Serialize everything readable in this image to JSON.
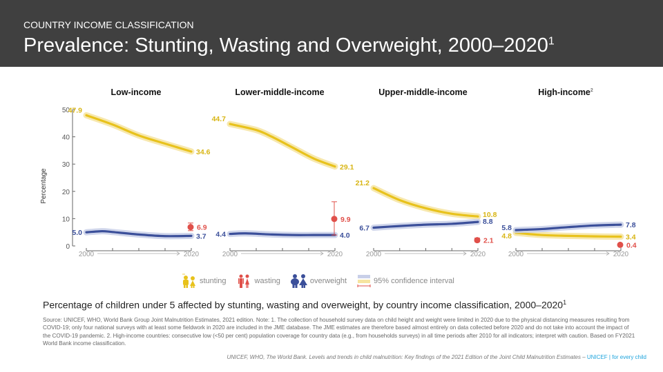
{
  "header": {
    "kicker": "COUNTRY INCOME CLASSIFICATION",
    "title": "Prevalence: Stunting, Wasting and Overweight, 2000–2020",
    "title_sup": "1"
  },
  "colors": {
    "header_bg": "#404040",
    "stunting": "#e8c21c",
    "stunting_band": "#f6e4a0",
    "wasting": "#e0504a",
    "overweight": "#3b4f9a",
    "overweight_band": "#c8cfe8",
    "axis": "#666666",
    "brand": "#1ca3dc"
  },
  "chart_data": {
    "type": "line",
    "ylabel": "Percentage",
    "ylim": [
      0,
      50
    ],
    "yticks": [
      0,
      10,
      20,
      30,
      40,
      50
    ],
    "x_start_label": "2000",
    "x_end_label": "2020",
    "panels": [
      {
        "name": "Low-income",
        "sup": "",
        "stunting": {
          "x": [
            2000,
            2005,
            2010,
            2015,
            2020
          ],
          "y": [
            47.9,
            44.5,
            40.5,
            37.5,
            34.6
          ],
          "start_label": "47.9",
          "end_label": "34.6"
        },
        "overweight": {
          "x": [
            2000,
            2003,
            2005,
            2010,
            2015,
            2020
          ],
          "y": [
            5.0,
            5.4,
            5.1,
            4.2,
            3.6,
            3.7
          ],
          "start_label": "5.0",
          "end_label": "3.7"
        },
        "wasting": {
          "year": 2020,
          "value": 6.9,
          "ci": [
            5.6,
            8.4
          ],
          "label": "6.9"
        }
      },
      {
        "name": "Lower-middle-income",
        "sup": "",
        "stunting": {
          "x": [
            2000,
            2005,
            2008,
            2012,
            2016,
            2020
          ],
          "y": [
            44.7,
            42.5,
            40.0,
            36.0,
            32.0,
            29.1
          ],
          "start_label": "44.7",
          "end_label": "29.1"
        },
        "overweight": {
          "x": [
            2000,
            2003,
            2008,
            2012,
            2016,
            2020
          ],
          "y": [
            4.4,
            4.6,
            4.2,
            4.0,
            4.0,
            4.0
          ],
          "start_label": "4.4",
          "end_label": "4.0"
        },
        "wasting": {
          "year": 2020,
          "value": 9.9,
          "ci": [
            4.0,
            16.2
          ],
          "label": "9.9"
        }
      },
      {
        "name": "Upper-middle-income",
        "sup": "",
        "stunting": {
          "x": [
            2000,
            2005,
            2010,
            2015,
            2020
          ],
          "y": [
            21.2,
            16.8,
            13.8,
            11.8,
            10.8
          ],
          "start_label": "21.2",
          "end_label": "10.8"
        },
        "overweight": {
          "x": [
            2000,
            2005,
            2010,
            2015,
            2020
          ],
          "y": [
            6.7,
            7.3,
            7.8,
            8.1,
            8.8
          ],
          "start_label": "6.7",
          "end_label": "8.8"
        },
        "wasting": {
          "year": 2020,
          "value": 2.1,
          "ci": [
            1.5,
            2.9
          ],
          "label": "2.1"
        }
      },
      {
        "name": "High-income",
        "sup": "2",
        "stunting": {
          "x": [
            2000,
            2005,
            2010,
            2015,
            2020
          ],
          "y": [
            4.8,
            4.0,
            3.7,
            3.5,
            3.4
          ],
          "start_label": "4.8",
          "end_label": "3.4"
        },
        "overweight": {
          "x": [
            2000,
            2005,
            2010,
            2015,
            2020
          ],
          "y": [
            5.8,
            6.2,
            6.9,
            7.5,
            7.8
          ],
          "start_label": "5.8",
          "end_label": "7.8"
        },
        "wasting": {
          "year": 2020,
          "value": 0.4,
          "ci": [
            0.2,
            0.6
          ],
          "label": "0.4"
        }
      }
    ],
    "legend": [
      {
        "key": "stunting",
        "label": "stunting"
      },
      {
        "key": "wasting",
        "label": "wasting"
      },
      {
        "key": "overweight",
        "label": "overweight"
      },
      {
        "key": "ci",
        "label": "95% confidence interval"
      }
    ]
  },
  "caption": {
    "text": "Percentage of children under 5 affected by stunting, wasting and overweight, by country income classification, 2000–2020",
    "sup": "1"
  },
  "source": "Source: UNICEF, WHO, World Bank Group Joint Malnutrition Estimates, 2021 edition. Note: 1. The collection of household survey data on child height and weight were limited in 2020 due to the physical distancing measures resulting from COVID-19; only four national surveys with at least some fieldwork in 2020 are included in the JME database. The JME estimates are therefore based almost entirely on data collected before 2020 and do not take into account the impact of the COVID-19 pandemic. 2. High-income countries: consecutive low (<50 per cent) population coverage for country data (e.g., from households surveys) in all time periods after 2010 for all indicators; interpret with caution. Based on FY2021 World Bank income classification.",
  "footer": {
    "citation": "UNICEF, WHO, The World Bank. Levels and trends in child malnutrition: Key findings of the 2021 Edition of the Joint Child Malnutrition Estimates – ",
    "brand": "UNICEF | for every child"
  }
}
